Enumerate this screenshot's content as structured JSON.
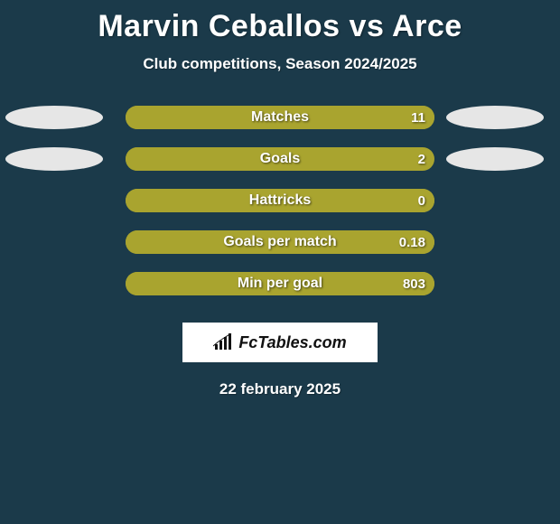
{
  "background_color": "#1b3a4a",
  "text_color": "#ffffff",
  "title": "Marvin Ceballos vs Arce",
  "subtitle": "Club competitions, Season 2024/2025",
  "ellipse_color": "#e6e6e6",
  "bar_track_color": "#a9a42f",
  "bar_fill_color": "#a9a42f",
  "stats": [
    {
      "label": "Matches",
      "value": "11",
      "fill_pct": 100,
      "show_left_ellipse": true,
      "show_right_ellipse": true
    },
    {
      "label": "Goals",
      "value": "2",
      "fill_pct": 95,
      "show_left_ellipse": true,
      "show_right_ellipse": true
    },
    {
      "label": "Hattricks",
      "value": "0",
      "fill_pct": 100,
      "show_left_ellipse": false,
      "show_right_ellipse": false
    },
    {
      "label": "Goals per match",
      "value": "0.18",
      "fill_pct": 100,
      "show_left_ellipse": false,
      "show_right_ellipse": false
    },
    {
      "label": "Min per goal",
      "value": "803",
      "fill_pct": 100,
      "show_left_ellipse": false,
      "show_right_ellipse": false
    }
  ],
  "logo_text": "FcTables.com",
  "date": "22 february 2025"
}
